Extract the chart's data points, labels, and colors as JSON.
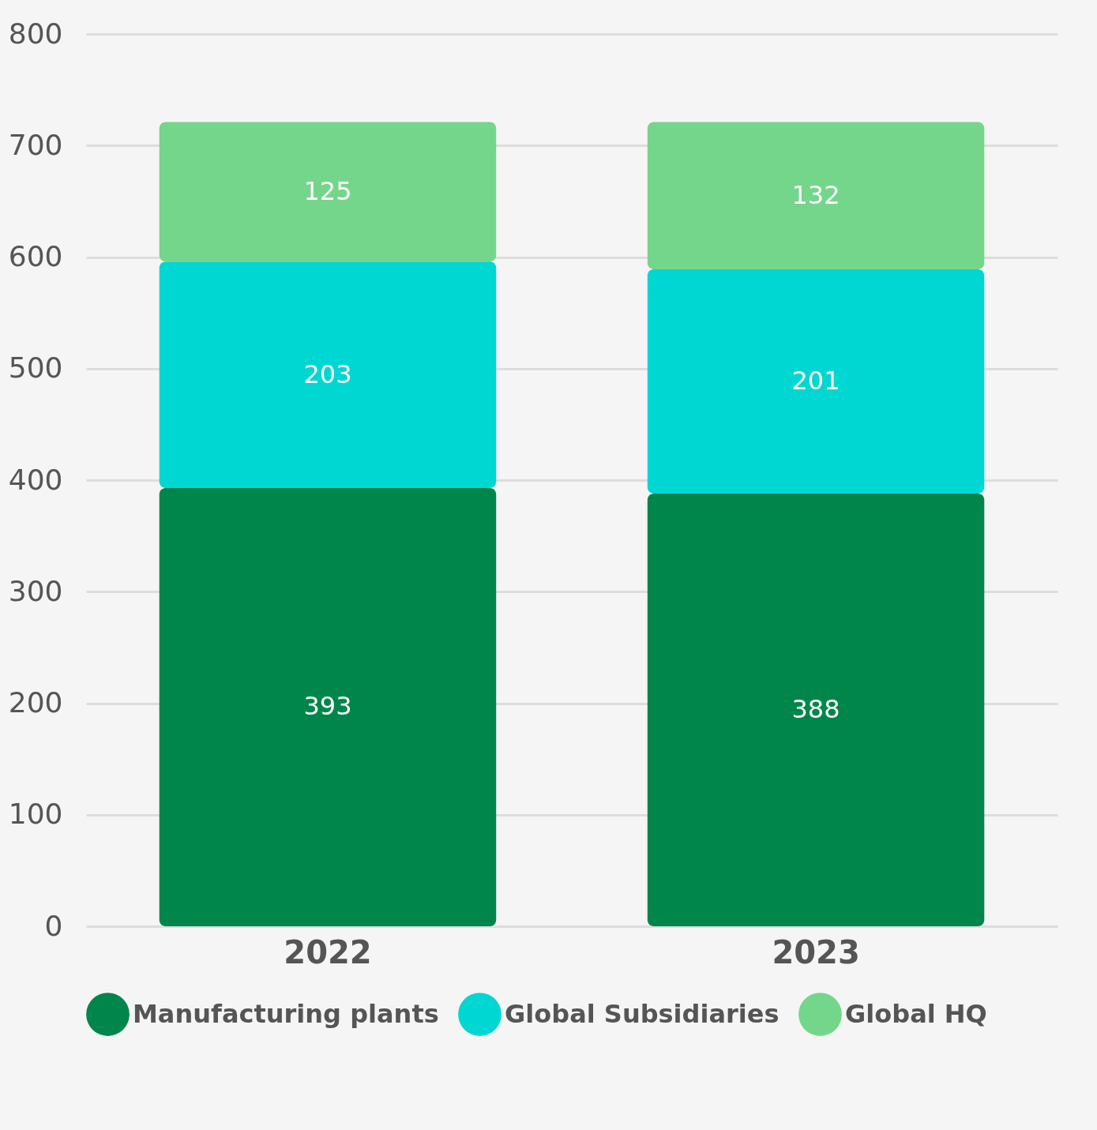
{
  "chart_data": {
    "type": "bar",
    "stacked": true,
    "categories": [
      "2022",
      "2023"
    ],
    "series": [
      {
        "name": "Manufacturing plants",
        "color": "#00864b",
        "values": [
          393,
          388
        ]
      },
      {
        "name": "Global Subsidiaries",
        "color": "#00d7d2",
        "values": [
          203,
          201
        ]
      },
      {
        "name": "Global HQ",
        "color": "#74d68a",
        "values": [
          125,
          132
        ]
      }
    ],
    "ylim": [
      0,
      800
    ],
    "yticks": [
      0,
      100,
      200,
      300,
      400,
      500,
      600,
      700,
      800
    ],
    "grid": "y",
    "legend": "bottom",
    "data_labels": true
  }
}
